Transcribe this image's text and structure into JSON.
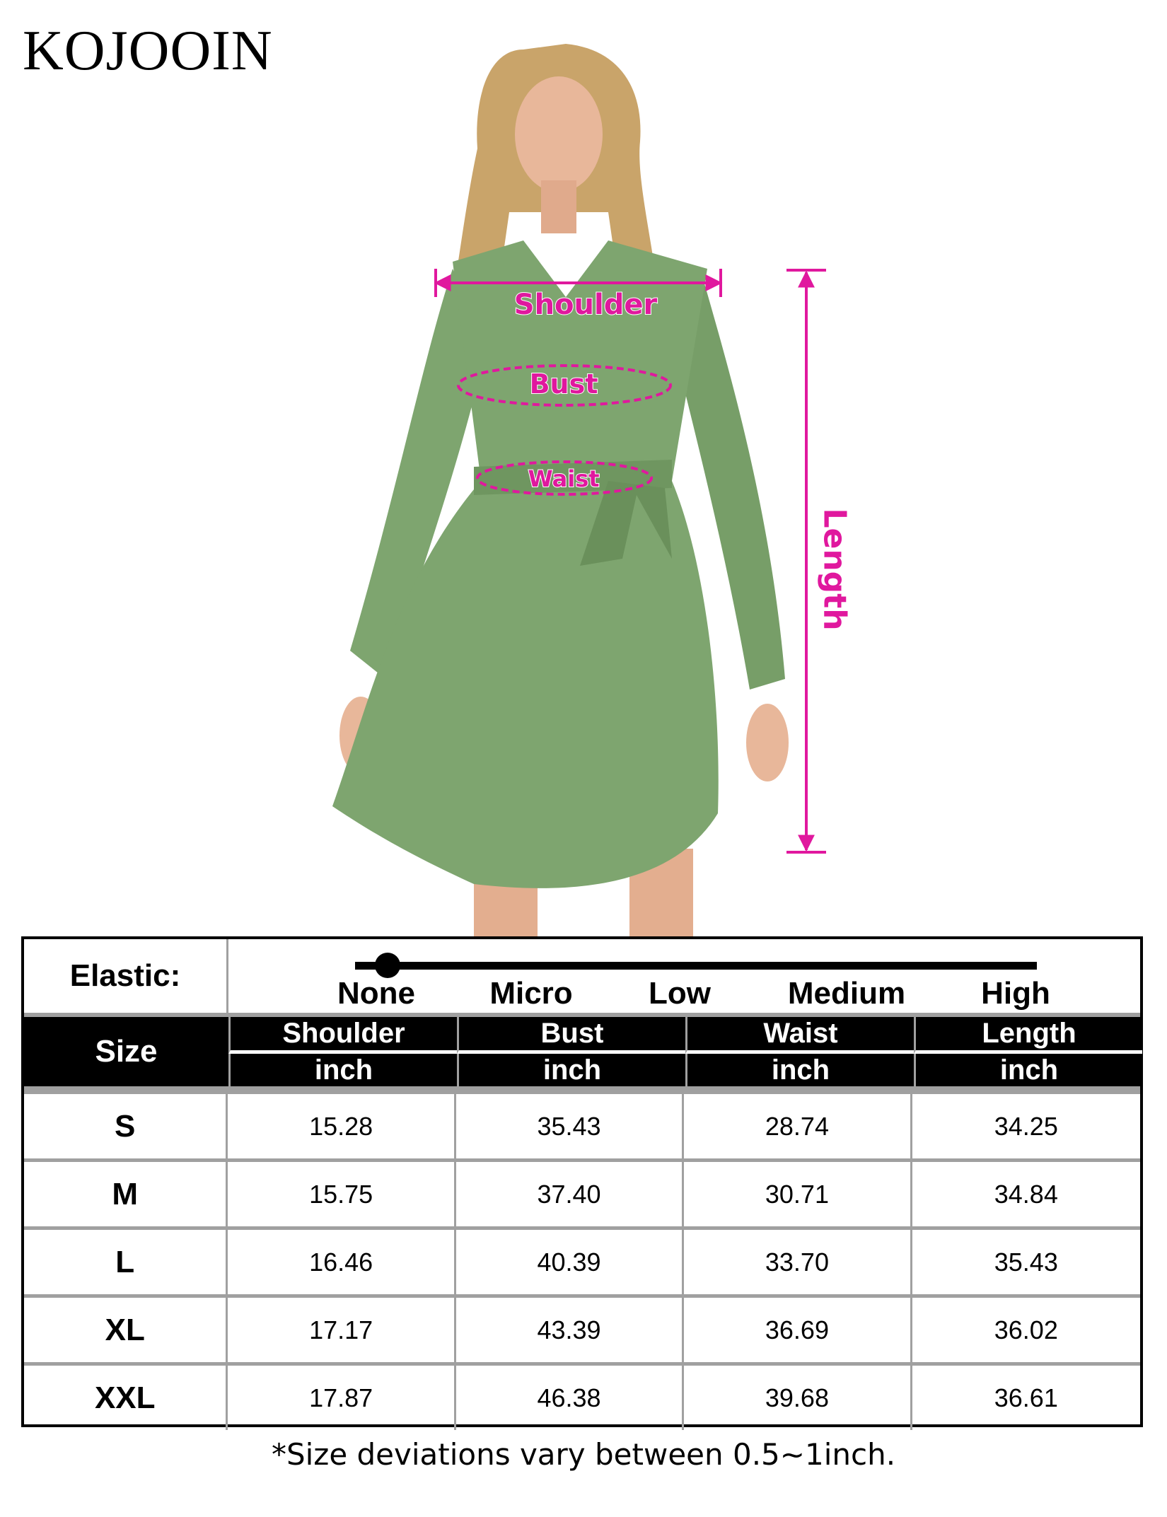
{
  "brand": "KOJOOIN",
  "colors": {
    "dress": "#7ea56f",
    "measure": "#e0189e",
    "header_bg": "#000000",
    "grid": "#a0a0a0"
  },
  "measurements": {
    "shoulder": "Shoulder",
    "bust": "Bust",
    "waist": "Waist",
    "length": "Length"
  },
  "elastic": {
    "label": "Elastic:",
    "levels": [
      "None",
      "Micro",
      "Low",
      "Medium",
      "High"
    ],
    "selected": "None"
  },
  "table": {
    "size_header": "Size",
    "columns": [
      {
        "name": "Shoulder",
        "unit": "inch"
      },
      {
        "name": "Bust",
        "unit": "inch"
      },
      {
        "name": "Waist",
        "unit": "inch"
      },
      {
        "name": "Length",
        "unit": "inch"
      }
    ],
    "rows": [
      {
        "size": "S",
        "values": [
          "15.28",
          "35.43",
          "28.74",
          "34.25"
        ]
      },
      {
        "size": "M",
        "values": [
          "15.75",
          "37.40",
          "30.71",
          "34.84"
        ]
      },
      {
        "size": "L",
        "values": [
          "16.46",
          "40.39",
          "33.70",
          "35.43"
        ]
      },
      {
        "size": "XL",
        "values": [
          "17.17",
          "43.39",
          "36.69",
          "36.02"
        ]
      },
      {
        "size": "XXL",
        "values": [
          "17.87",
          "46.38",
          "39.68",
          "36.61"
        ]
      }
    ]
  },
  "footnote": "*Size deviations vary between 0.5~1inch."
}
